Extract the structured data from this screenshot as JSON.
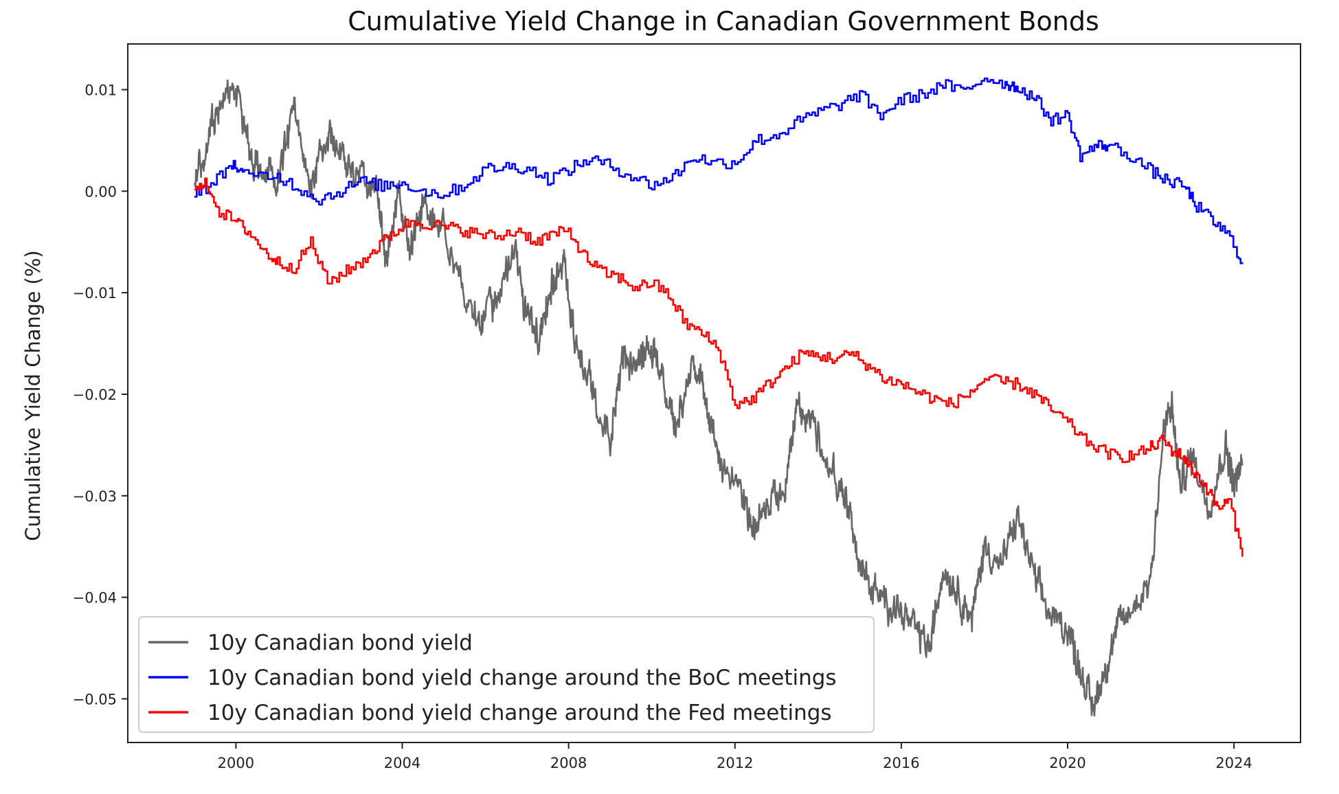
{
  "chart_data": {
    "type": "line",
    "title": "Cumulative Yield Change in Canadian Government Bonds",
    "xlabel": "",
    "ylabel": "Cumulative Yield Change (%)",
    "xlim": [
      1997.4,
      2025.6
    ],
    "ylim": [
      -0.0543,
      0.0145
    ],
    "xticks": [
      2000,
      2004,
      2008,
      2012,
      2016,
      2020,
      2024
    ],
    "xtick_labels": [
      "2000",
      "2004",
      "2008",
      "2012",
      "2016",
      "2020",
      "2024"
    ],
    "yticks": [
      0.01,
      0.0,
      -0.01,
      -0.02,
      -0.03,
      -0.04,
      -0.05
    ],
    "ytick_labels": [
      "0.01",
      "0.00",
      "−0.01",
      "−0.02",
      "−0.03",
      "−0.04",
      "−0.05"
    ],
    "legend_position": "lower-left",
    "series": [
      {
        "name": "10y Canadian bond yield",
        "color": "#666666",
        "style": "noisy",
        "x": [
          1999.0,
          1999.3,
          1999.6,
          2000.0,
          2000.3,
          2000.6,
          2001.0,
          2001.4,
          2001.8,
          2002.2,
          2002.6,
          2003.0,
          2003.4,
          2003.6,
          2003.9,
          2004.2,
          2004.5,
          2005.0,
          2005.5,
          2005.9,
          2006.3,
          2006.7,
          2007.0,
          2007.3,
          2007.6,
          2007.9,
          2008.2,
          2008.6,
          2009.0,
          2009.3,
          2009.6,
          2009.9,
          2010.3,
          2010.6,
          2011.0,
          2011.3,
          2011.6,
          2012.0,
          2012.4,
          2012.8,
          2013.2,
          2013.5,
          2013.9,
          2014.3,
          2014.7,
          2015.1,
          2015.5,
          2015.9,
          2016.3,
          2016.7,
          2017.0,
          2017.3,
          2017.7,
          2018.0,
          2018.4,
          2018.8,
          2019.2,
          2019.6,
          2020.0,
          2020.3,
          2020.6,
          2020.9,
          2021.2,
          2021.6,
          2022.0,
          2022.3,
          2022.5,
          2022.7,
          2023.0,
          2023.4,
          2023.8,
          2024.0,
          2024.2
        ],
        "values": [
          0.0,
          0.005,
          0.008,
          0.01,
          0.004,
          0.002,
          0.001,
          0.008,
          0.0,
          0.006,
          0.003,
          0.001,
          0.0,
          -0.007,
          0.0,
          -0.006,
          -0.001,
          -0.004,
          -0.01,
          -0.013,
          -0.01,
          -0.006,
          -0.012,
          -0.014,
          -0.009,
          -0.007,
          -0.016,
          -0.02,
          -0.024,
          -0.016,
          -0.018,
          -0.015,
          -0.019,
          -0.023,
          -0.017,
          -0.02,
          -0.027,
          -0.028,
          -0.033,
          -0.031,
          -0.03,
          -0.021,
          -0.023,
          -0.027,
          -0.031,
          -0.038,
          -0.04,
          -0.041,
          -0.043,
          -0.045,
          -0.037,
          -0.039,
          -0.042,
          -0.035,
          -0.037,
          -0.032,
          -0.038,
          -0.042,
          -0.043,
          -0.047,
          -0.051,
          -0.047,
          -0.043,
          -0.041,
          -0.038,
          -0.024,
          -0.021,
          -0.029,
          -0.026,
          -0.031,
          -0.025,
          -0.029,
          -0.027
        ]
      },
      {
        "name": "10y Canadian bond yield change around the BoC meetings",
        "color": "#0000ff",
        "style": "step",
        "x": [
          1999.0,
          1999.4,
          1999.9,
          2000.2,
          2001.0,
          2001.5,
          2002.0,
          2002.5,
          2003.0,
          2003.5,
          2004.0,
          2004.5,
          2005.0,
          2005.5,
          2006.0,
          2006.5,
          2007.0,
          2007.5,
          2008.0,
          2008.5,
          2009.0,
          2009.5,
          2010.0,
          2010.5,
          2011.0,
          2011.5,
          2012.0,
          2012.5,
          2013.0,
          2013.5,
          2014.0,
          2014.5,
          2015.0,
          2015.5,
          2016.0,
          2016.5,
          2017.0,
          2017.5,
          2018.0,
          2018.5,
          2018.8,
          2019.2,
          2019.6,
          2020.0,
          2020.3,
          2020.7,
          2021.0,
          2021.5,
          2022.0,
          2022.4,
          2022.8,
          2023.1,
          2023.5,
          2023.9,
          2024.2
        ],
        "values": [
          0.0,
          0.0005,
          0.0028,
          0.0015,
          0.0015,
          0.0003,
          -0.0008,
          0.0,
          0.001,
          0.0005,
          0.0008,
          0.0,
          -0.0003,
          0.0006,
          0.0022,
          0.0024,
          0.0023,
          0.0012,
          0.0021,
          0.0032,
          0.0025,
          0.0015,
          0.0006,
          0.0014,
          0.0034,
          0.0028,
          0.0028,
          0.005,
          0.0055,
          0.0068,
          0.0078,
          0.0085,
          0.0095,
          0.0075,
          0.009,
          0.0095,
          0.0105,
          0.0098,
          0.0112,
          0.0106,
          0.0102,
          0.0092,
          0.007,
          0.0075,
          0.0035,
          0.0045,
          0.0045,
          0.0035,
          0.002,
          0.001,
          0.0005,
          -0.0015,
          -0.003,
          -0.0045,
          -0.007
        ]
      },
      {
        "name": "10y Canadian bond yield change around the Fed meetings",
        "color": "#ff0000",
        "style": "step",
        "x": [
          1999.0,
          1999.3,
          1999.6,
          2000.0,
          2000.3,
          2000.7,
          2001.0,
          2001.4,
          2001.8,
          2002.2,
          2002.6,
          2003.0,
          2003.4,
          2003.8,
          2004.2,
          2004.6,
          2005.0,
          2005.4,
          2005.8,
          2006.3,
          2006.8,
          2007.2,
          2007.6,
          2008.0,
          2008.4,
          2008.8,
          2009.2,
          2009.6,
          2010.0,
          2010.4,
          2010.8,
          2011.2,
          2011.6,
          2012.0,
          2012.4,
          2012.8,
          2013.2,
          2013.6,
          2014.0,
          2014.4,
          2014.8,
          2015.2,
          2015.6,
          2016.0,
          2016.4,
          2016.8,
          2017.2,
          2017.6,
          2018.0,
          2018.4,
          2018.8,
          2019.2,
          2019.6,
          2020.0,
          2020.4,
          2020.8,
          2021.2,
          2021.6,
          2022.0,
          2022.3,
          2022.5,
          2022.8,
          2023.0,
          2023.3,
          2023.6,
          2023.9,
          2024.2
        ],
        "values": [
          0.0,
          0.0008,
          -0.002,
          -0.003,
          -0.004,
          -0.006,
          -0.007,
          -0.0075,
          -0.005,
          -0.009,
          -0.008,
          -0.007,
          -0.0055,
          -0.004,
          -0.003,
          -0.0032,
          -0.0035,
          -0.0038,
          -0.0042,
          -0.0045,
          -0.0038,
          -0.005,
          -0.0042,
          -0.004,
          -0.0065,
          -0.008,
          -0.0085,
          -0.0095,
          -0.009,
          -0.0102,
          -0.013,
          -0.014,
          -0.0155,
          -0.021,
          -0.0205,
          -0.019,
          -0.0175,
          -0.016,
          -0.0162,
          -0.0165,
          -0.016,
          -0.0172,
          -0.0185,
          -0.019,
          -0.0198,
          -0.0205,
          -0.021,
          -0.02,
          -0.0185,
          -0.0188,
          -0.019,
          -0.02,
          -0.0215,
          -0.0228,
          -0.0245,
          -0.0255,
          -0.0262,
          -0.026,
          -0.0252,
          -0.0245,
          -0.0255,
          -0.0262,
          -0.0275,
          -0.029,
          -0.0312,
          -0.0305,
          -0.036
        ]
      }
    ]
  }
}
